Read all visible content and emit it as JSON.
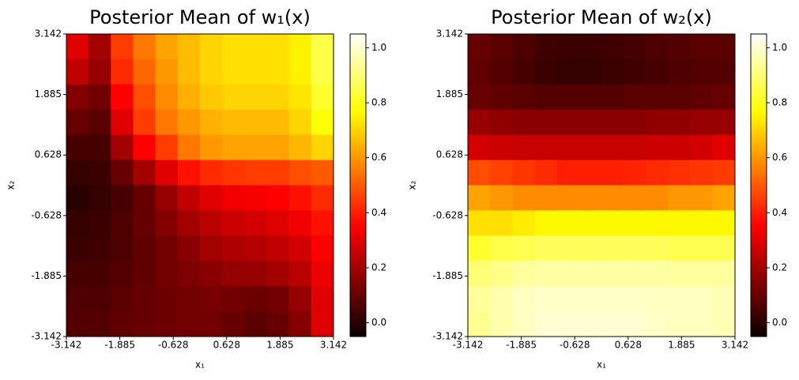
{
  "chart_data": [
    {
      "type": "heatmap",
      "title": "Posterior Mean of w₁(x)",
      "xlabel": "x₁",
      "ylabel": "x₂",
      "xlim": [
        -3.142,
        3.142
      ],
      "ylim": [
        -3.142,
        3.142
      ],
      "xticks": [
        -3.142,
        -1.885,
        -0.628,
        0.628,
        1.885,
        3.142
      ],
      "yticks": [
        -3.142,
        -1.885,
        -0.628,
        0.628,
        1.885,
        3.142
      ],
      "colormap": "hot",
      "clim": [
        -0.05,
        1.05
      ],
      "colorbar_ticks": [
        {
          "value": 0,
          "label": "0.0"
        },
        0.2,
        0.4,
        0.6,
        0.8,
        {
          "value": 1,
          "label": "1.0"
        }
      ],
      "z": [
        [
          0.3,
          0.2,
          0.45,
          0.55,
          0.62,
          0.66,
          0.7,
          0.72,
          0.72,
          0.72,
          0.75,
          0.85
        ],
        [
          0.25,
          0.18,
          0.42,
          0.52,
          0.6,
          0.66,
          0.7,
          0.72,
          0.72,
          0.72,
          0.75,
          0.85
        ],
        [
          0.15,
          0.12,
          0.35,
          0.48,
          0.58,
          0.64,
          0.68,
          0.7,
          0.7,
          0.7,
          0.73,
          0.82
        ],
        [
          0.1,
          0.08,
          0.3,
          0.45,
          0.55,
          0.6,
          0.64,
          0.66,
          0.66,
          0.66,
          0.7,
          0.78
        ],
        [
          0.05,
          0.05,
          0.2,
          0.35,
          0.45,
          0.55,
          0.6,
          0.62,
          0.62,
          0.62,
          0.65,
          0.7
        ],
        [
          0.02,
          0.03,
          0.1,
          0.2,
          0.3,
          0.38,
          0.42,
          0.44,
          0.45,
          0.45,
          0.48,
          0.5
        ],
        [
          0.0,
          0.02,
          0.05,
          0.1,
          0.18,
          0.25,
          0.3,
          0.33,
          0.34,
          0.35,
          0.38,
          0.42
        ],
        [
          0.02,
          0.03,
          0.06,
          0.1,
          0.15,
          0.2,
          0.24,
          0.27,
          0.28,
          0.3,
          0.33,
          0.38
        ],
        [
          0.03,
          0.04,
          0.06,
          0.09,
          0.12,
          0.16,
          0.2,
          0.22,
          0.23,
          0.25,
          0.28,
          0.35
        ],
        [
          0.05,
          0.05,
          0.07,
          0.09,
          0.12,
          0.14,
          0.16,
          0.18,
          0.18,
          0.2,
          0.24,
          0.32
        ],
        [
          0.06,
          0.06,
          0.08,
          0.1,
          0.11,
          0.12,
          0.13,
          0.12,
          0.11,
          0.12,
          0.18,
          0.3
        ],
        [
          0.07,
          0.07,
          0.09,
          0.1,
          0.11,
          0.12,
          0.12,
          0.1,
          0.08,
          0.1,
          0.15,
          0.3
        ]
      ]
    },
    {
      "type": "heatmap",
      "title": "Posterior Mean of w₂(x)",
      "xlabel": "x₁",
      "ylabel": "x₂",
      "xlim": [
        -3.142,
        3.142
      ],
      "ylim": [
        -3.142,
        3.142
      ],
      "xticks": [
        -3.142,
        -1.885,
        -0.628,
        0.628,
        1.885,
        3.142
      ],
      "yticks": [
        -3.142,
        -1.885,
        -0.628,
        0.628,
        1.885,
        3.142
      ],
      "colormap": "hot",
      "clim": [
        -0.05,
        1.05
      ],
      "colorbar_ticks": [
        {
          "value": 0,
          "label": "0.0"
        },
        0.2,
        0.4,
        0.6,
        0.8,
        {
          "value": 1,
          "label": "1.0"
        }
      ],
      "z": [
        [
          0.1,
          0.08,
          0.06,
          0.04,
          0.03,
          0.03,
          0.04,
          0.05,
          0.06,
          0.07,
          0.08,
          0.08
        ],
        [
          0.09,
          0.07,
          0.05,
          0.03,
          0.02,
          0.02,
          0.03,
          0.04,
          0.05,
          0.06,
          0.07,
          0.07
        ],
        [
          0.1,
          0.09,
          0.08,
          0.07,
          0.07,
          0.07,
          0.07,
          0.08,
          0.08,
          0.08,
          0.09,
          0.1
        ],
        [
          0.18,
          0.17,
          0.16,
          0.16,
          0.16,
          0.16,
          0.16,
          0.16,
          0.17,
          0.17,
          0.18,
          0.18
        ],
        [
          0.28,
          0.27,
          0.26,
          0.26,
          0.26,
          0.26,
          0.26,
          0.26,
          0.27,
          0.27,
          0.28,
          0.3
        ],
        [
          0.48,
          0.46,
          0.44,
          0.42,
          0.4,
          0.4,
          0.4,
          0.41,
          0.42,
          0.43,
          0.44,
          0.45
        ],
        [
          0.62,
          0.6,
          0.58,
          0.58,
          0.58,
          0.58,
          0.58,
          0.58,
          0.58,
          0.6,
          0.6,
          0.62
        ],
        [
          0.72,
          0.72,
          0.74,
          0.76,
          0.76,
          0.76,
          0.76,
          0.76,
          0.76,
          0.76,
          0.76,
          0.76
        ],
        [
          0.82,
          0.85,
          0.86,
          0.87,
          0.87,
          0.87,
          0.87,
          0.87,
          0.87,
          0.86,
          0.86,
          0.86
        ],
        [
          0.9,
          0.92,
          0.94,
          0.95,
          0.95,
          0.95,
          0.95,
          0.95,
          0.95,
          0.94,
          0.94,
          0.94
        ],
        [
          0.94,
          0.96,
          0.98,
          0.99,
          0.99,
          0.99,
          0.99,
          0.99,
          0.98,
          0.98,
          0.98,
          0.97
        ],
        [
          0.93,
          0.96,
          0.98,
          1.0,
          1.0,
          1.0,
          1.0,
          1.0,
          0.99,
          0.98,
          0.98,
          0.97
        ]
      ]
    }
  ]
}
